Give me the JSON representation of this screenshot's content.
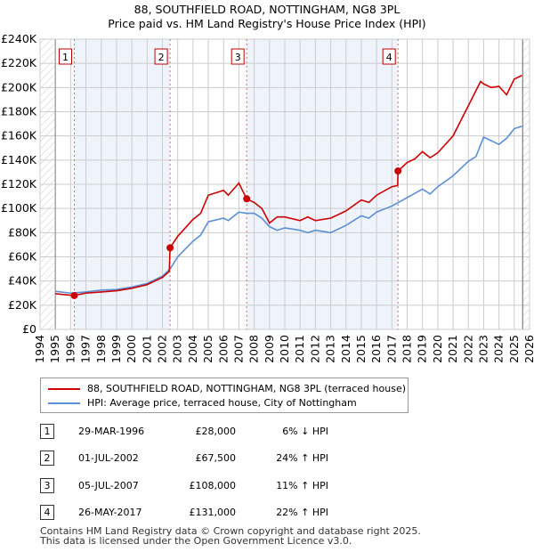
{
  "chart_data": {
    "type": "line",
    "title": "88, SOUTHFIELD ROAD, NOTTINGHAM, NG8 3PL",
    "subtitle": "Price paid vs. HM Land Registry's House Price Index (HPI)",
    "xlim": [
      1994,
      2026
    ],
    "ylim": [
      0,
      240000
    ],
    "y_ticks": [
      "£0",
      "£20K",
      "£40K",
      "£60K",
      "£80K",
      "£100K",
      "£120K",
      "£140K",
      "£160K",
      "£180K",
      "£200K",
      "£220K",
      "£240K"
    ],
    "x_ticks": [
      "1994",
      "1995",
      "1996",
      "1997",
      "1998",
      "1999",
      "2000",
      "2001",
      "2002",
      "2003",
      "2004",
      "2005",
      "2006",
      "2007",
      "2008",
      "2009",
      "2010",
      "2011",
      "2012",
      "2013",
      "2014",
      "2015",
      "2016",
      "2017",
      "2018",
      "2019",
      "2020",
      "2021",
      "2022",
      "2023",
      "2024",
      "2025",
      "2026"
    ],
    "grid": true,
    "colors": {
      "price": "#cc0000",
      "hpi": "#5b8fd4",
      "shade": "#eef3fc",
      "marker_line": "#e06666"
    },
    "series": [
      {
        "name": "88, SOUTHFIELD ROAD, NOTTINGHAM, NG8 3PL (terraced house)",
        "x": [
          1995,
          1996.2,
          1997,
          1998,
          1999,
          2000,
          2001,
          2002,
          2002.45,
          2002.5,
          2003,
          2004,
          2004.5,
          2005,
          2006,
          2006.3,
          2007,
          2007.5,
          2008,
          2008.5,
          2009,
          2009.5,
          2010,
          2011,
          2011.5,
          2012,
          2013,
          2014,
          2015,
          2015.5,
          2016,
          2017,
          2017.38,
          2017.4,
          2018,
          2018.5,
          2019,
          2019.5,
          2020,
          2021,
          2022,
          2022.8,
          2023,
          2023.5,
          2024,
          2024.5,
          2025,
          2025.5
        ],
        "values": [
          29500,
          28000,
          30000,
          31000,
          32000,
          34000,
          37000,
          43000,
          48000,
          67500,
          77000,
          91000,
          96000,
          111000,
          115000,
          111000,
          121000,
          108000,
          105000,
          100000,
          88000,
          93000,
          93000,
          90000,
          93000,
          90000,
          92000,
          98000,
          107000,
          105000,
          111000,
          118000,
          119000,
          131000,
          138000,
          141000,
          147000,
          142000,
          146000,
          160000,
          185000,
          205000,
          203000,
          200000,
          201000,
          194000,
          207000,
          210000
        ]
      },
      {
        "name": "HPI: Average price, terraced house, City of Nottingham",
        "x": [
          1995,
          1996,
          1997,
          1998,
          1999,
          2000,
          2001,
          2002,
          2002.5,
          2003,
          2004,
          2004.5,
          2005,
          2006,
          2006.3,
          2007,
          2007.5,
          2008,
          2008.5,
          2009,
          2009.5,
          2010,
          2011,
          2011.5,
          2012,
          2013,
          2014,
          2015,
          2015.5,
          2016,
          2017,
          2018,
          2019,
          2019.5,
          2020,
          2021,
          2022,
          2022.5,
          2023,
          2024,
          2024.5,
          2025,
          2025.5
        ],
        "values": [
          31500,
          30000,
          31000,
          32500,
          33000,
          35000,
          38000,
          44000,
          50000,
          60000,
          73000,
          78000,
          89000,
          92000,
          90000,
          97000,
          96000,
          96000,
          92000,
          85000,
          82000,
          84000,
          82000,
          80000,
          82000,
          80000,
          86000,
          94000,
          92000,
          97000,
          102000,
          109000,
          116000,
          112000,
          118000,
          127000,
          139000,
          143000,
          159000,
          153000,
          158000,
          166000,
          168000
        ]
      }
    ],
    "sales": [
      {
        "label": "1",
        "x": 1996.24,
        "value": 28000
      },
      {
        "label": "2",
        "x": 2002.5,
        "value": 67500
      },
      {
        "label": "3",
        "x": 2007.51,
        "value": 108000
      },
      {
        "label": "4",
        "x": 2017.4,
        "value": 131000
      }
    ]
  },
  "legend": {
    "price": "88, SOUTHFIELD ROAD, NOTTINGHAM, NG8 3PL (terraced house)",
    "hpi": "HPI: Average price, terraced house, City of Nottingham"
  },
  "table": [
    {
      "num": "1",
      "date": "29-MAR-1996",
      "price": "£28,000",
      "hpi": "6% ↓ HPI"
    },
    {
      "num": "2",
      "date": "01-JUL-2002",
      "price": "£67,500",
      "hpi": "24% ↑ HPI"
    },
    {
      "num": "3",
      "date": "05-JUL-2007",
      "price": "£108,000",
      "hpi": "11% ↑ HPI"
    },
    {
      "num": "4",
      "date": "26-MAY-2017",
      "price": "£131,000",
      "hpi": "22% ↑ HPI"
    }
  ],
  "footer": [
    "Contains HM Land Registry data © Crown copyright and database right 2025.",
    "This data is licensed under the Open Government Licence v3.0."
  ]
}
